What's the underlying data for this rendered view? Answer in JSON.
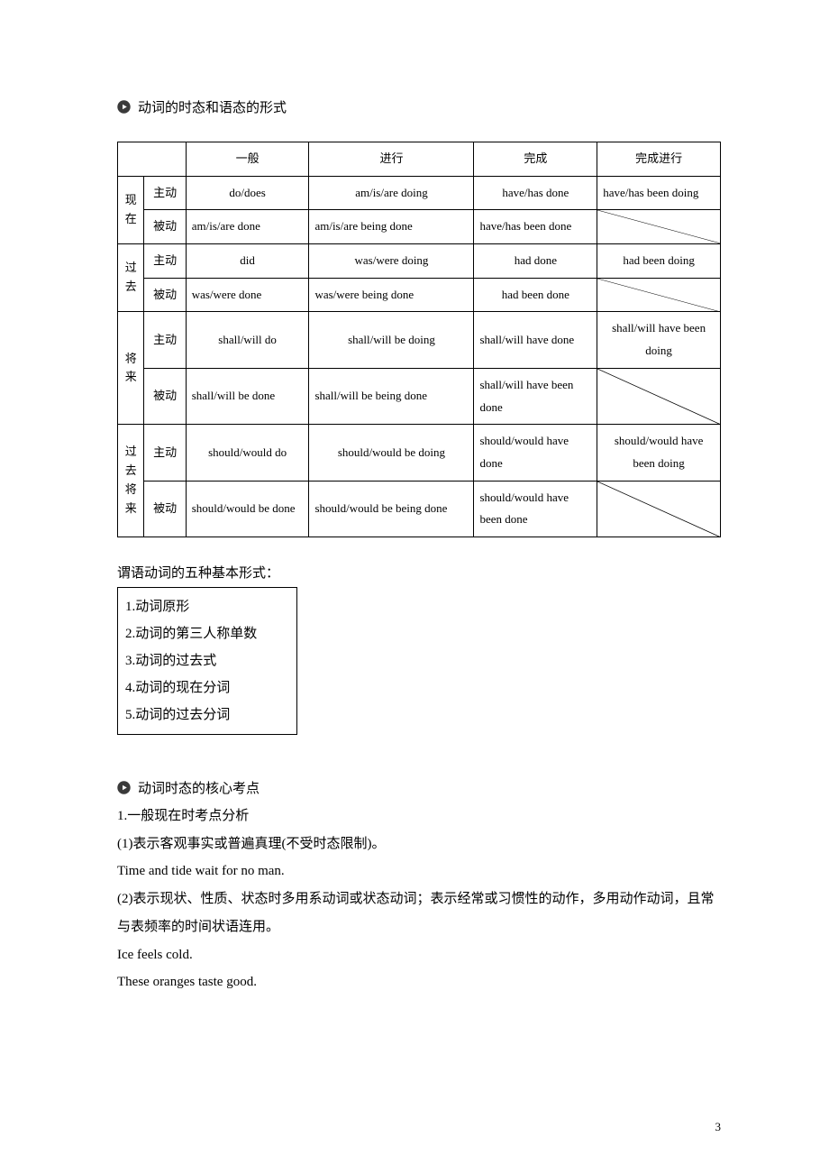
{
  "section1": {
    "heading": "动词的时态和语态的形式"
  },
  "table": {
    "headers": [
      "一般",
      "进行",
      "完成",
      "完成进行"
    ],
    "tenses": [
      {
        "label": "现在",
        "rows": [
          {
            "voice": "主动",
            "cells": [
              "do/does",
              "am/is/are doing",
              "have/has done",
              "have/has been doing"
            ],
            "align": [
              "center",
              "center",
              "center",
              "left"
            ],
            "diagLast": false
          },
          {
            "voice": "被动",
            "cells": [
              "am/is/are done",
              "am/is/are being done",
              "have/has been done",
              ""
            ],
            "align": [
              "left",
              "left",
              "left",
              "left"
            ],
            "diagLast": true
          }
        ]
      },
      {
        "label": "过去",
        "rows": [
          {
            "voice": "主动",
            "cells": [
              "did",
              "was/were doing",
              "had done",
              "had been doing"
            ],
            "align": [
              "center",
              "center",
              "center",
              "center"
            ],
            "diagLast": false
          },
          {
            "voice": "被动",
            "cells": [
              "was/were done",
              "was/were being done",
              "had been done",
              ""
            ],
            "align": [
              "left",
              "left",
              "center",
              "left"
            ],
            "diagLast": true
          }
        ]
      },
      {
        "label": "将来",
        "rows": [
          {
            "voice": "主动",
            "cells": [
              "shall/will do",
              "shall/will be doing",
              "shall/will have done",
              "shall/will have been doing"
            ],
            "align": [
              "center",
              "center",
              "left",
              "center"
            ],
            "diagLast": false
          },
          {
            "voice": "被动",
            "cells": [
              "shall/will be done",
              "shall/will be being done",
              "shall/will have been done",
              ""
            ],
            "align": [
              "left",
              "left",
              "left",
              "left"
            ],
            "diagLast": true
          }
        ]
      },
      {
        "label": "过去将来",
        "rows": [
          {
            "voice": "主动",
            "cells": [
              "should/would do",
              "should/would be doing",
              "should/would have done",
              "should/would have been doing"
            ],
            "align": [
              "center",
              "center",
              "left",
              "center"
            ],
            "diagLast": false
          },
          {
            "voice": "被动",
            "cells": [
              "should/would be done",
              "should/would be being done",
              "should/would have been done",
              ""
            ],
            "align": [
              "left",
              "left",
              "left",
              "left"
            ],
            "diagLast": true
          }
        ]
      }
    ]
  },
  "forms": {
    "heading": "谓语动词的五种基本形式：",
    "items": [
      "1.动词原形",
      "2.动词的第三人称单数",
      "3.动词的过去式",
      "4.动词的现在分词",
      "5.动词的过去分词"
    ]
  },
  "section2": {
    "heading": "动词时态的核心考点",
    "lines": [
      "1.一般现在时考点分析",
      "(1)表示客观事实或普遍真理(不受时态限制)。",
      "Time and tide wait for no man.",
      "(2)表示现状、性质、状态时多用系动词或状态动词；表示经常或习惯性的动作，多用动作动词，且常与表频率的时间状语连用。",
      "Ice feels cold.",
      "These oranges taste good."
    ]
  },
  "pageNumber": "3",
  "colors": {
    "text": "#000000",
    "border": "#000000",
    "background": "#ffffff",
    "iconFill": "#3a3a3a"
  }
}
